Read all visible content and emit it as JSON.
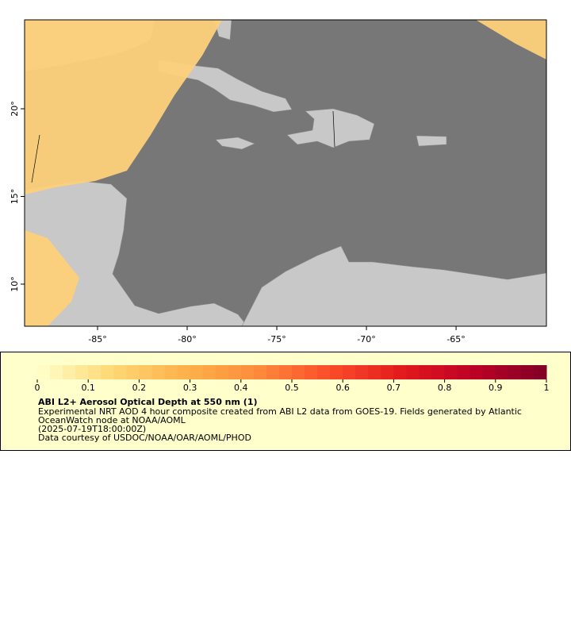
{
  "map": {
    "xlim": [
      -89.07,
      -59.96
    ],
    "ylim": [
      7.6,
      25.07
    ],
    "xticks": [
      {
        "value": -85,
        "label": "-85°"
      },
      {
        "value": -80,
        "label": "-80°"
      },
      {
        "value": -75,
        "label": "-75°"
      },
      {
        "value": -70,
        "label": "-70°"
      },
      {
        "value": -65,
        "label": "-65°"
      }
    ],
    "yticks": [
      {
        "value": 10,
        "label": "10°"
      },
      {
        "value": 15,
        "label": "15°"
      },
      {
        "value": 20,
        "label": "20°"
      }
    ]
  },
  "colorbar": {
    "lim": [
      0,
      1
    ],
    "ticks": [
      0,
      0.1,
      0.2,
      0.3,
      0.4,
      0.5,
      0.6,
      0.7,
      0.8,
      0.9,
      1
    ],
    "colors": [
      "#ffffcc",
      "#fed976",
      "#feb24c",
      "#fd8d3c",
      "#fc4e2a",
      "#e31a1c",
      "#bd0026",
      "#800026"
    ]
  },
  "legend": {
    "title": "ABI L2+ Aerosol Optical Depth at 550 nm (1)",
    "lines": [
      "Experimental NRT AOD 4 hour composite created from ABI L2 data from GOES-19. Fields generated by Atlantic",
      "OceanWatch node at NOAA/AOML",
      "(2025-07-19T18:00:00Z)",
      "Data courtesy of USDOC/NOAA/OAR/AOML/PHOD"
    ]
  }
}
